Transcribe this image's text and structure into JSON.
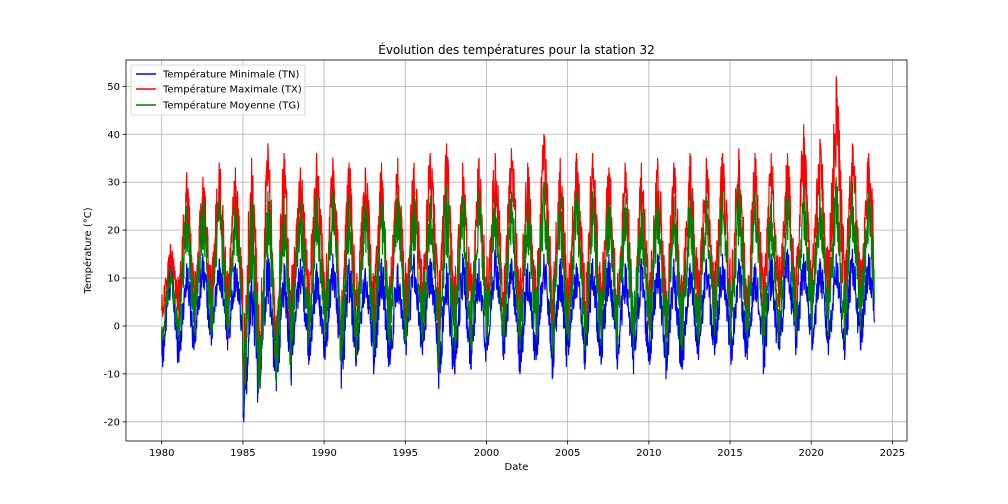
{
  "chart_data": {
    "type": "line",
    "title": "Évolution des températures pour la station 32",
    "xlabel": "Date",
    "ylabel": "Température (°C)",
    "x_range": [
      1977.8,
      2025.9
    ],
    "ylim": [
      -24,
      55.5
    ],
    "x_ticks": [
      1980,
      1985,
      1990,
      1995,
      2000,
      2005,
      2010,
      2015,
      2020,
      2025
    ],
    "y_ticks": [
      -20,
      -10,
      0,
      10,
      20,
      30,
      40,
      50
    ],
    "grid": true,
    "legend_position": "top-left",
    "series": [
      {
        "name": "Température Minimale (TN)",
        "color": "#0000ff",
        "annual_summer_peak": [
          14,
          13,
          15,
          14,
          13,
          12,
          15,
          13,
          14,
          13,
          15,
          14,
          12,
          14,
          13,
          15,
          14,
          13,
          15,
          14,
          16,
          14,
          13,
          15,
          14,
          13,
          14,
          15,
          13,
          14,
          15,
          14,
          13,
          14,
          15,
          14,
          13,
          15,
          16,
          15,
          14,
          15,
          16,
          15
        ],
        "annual_winter_trough": [
          -8.5,
          -7.5,
          -3.5,
          -4,
          -5,
          -20,
          -13,
          -13.5,
          -6,
          -8,
          -7,
          -13,
          -6,
          -10,
          -8,
          -6,
          -6,
          -13,
          -10,
          -9,
          -5,
          -7,
          -10,
          -7,
          -11,
          -6,
          -9,
          -8,
          -9,
          -10,
          -8,
          -11,
          -9,
          -7,
          -6,
          -8,
          -7,
          -10,
          -5,
          -6,
          -5,
          -6,
          -7,
          -5
        ]
      },
      {
        "name": "Température Maximale (TX)",
        "color": "#ff0000",
        "annual_summer_peak": [
          17,
          32,
          31,
          34,
          33,
          35,
          38,
          36,
          33,
          36,
          35,
          34,
          33,
          34,
          35,
          34,
          36,
          38,
          34,
          35,
          36,
          37,
          34,
          40,
          35,
          36,
          36,
          33,
          34,
          34,
          35,
          34,
          36,
          35,
          36,
          37,
          36,
          36,
          36,
          42,
          39,
          52,
          38,
          36
        ],
        "annual_winter_trough": [
          2,
          1,
          2,
          1,
          0,
          -15,
          -10,
          -10,
          2,
          1,
          0,
          -5,
          2,
          -2,
          0,
          1,
          2,
          -5,
          -1,
          0,
          2,
          1,
          -2,
          0,
          -3,
          1,
          -1,
          0,
          -1,
          -2,
          0,
          -3,
          -1,
          1,
          2,
          0,
          1,
          -2,
          3,
          2,
          3,
          2,
          1,
          3
        ]
      },
      {
        "name": "Température Moyenne (TG)",
        "color": "#008000",
        "annual_summer_peak": [
          12,
          25,
          26,
          27,
          26,
          27,
          28,
          27,
          26,
          27,
          28,
          27,
          26,
          27,
          28,
          27,
          27,
          29,
          27,
          28,
          27,
          28,
          27,
          30,
          27,
          28,
          28,
          26,
          27,
          27,
          28,
          27,
          28,
          27,
          28,
          29,
          28,
          28,
          28,
          30,
          29,
          31,
          30,
          28
        ],
        "annual_winter_trough": [
          -3,
          -3,
          -2,
          -2,
          -2,
          -18,
          -12,
          -12,
          -3,
          -4,
          -3,
          -8,
          -3,
          -6,
          -4,
          -3,
          -3,
          -9,
          -5,
          -5,
          -2,
          -3,
          -5,
          -3,
          -6,
          -3,
          -5,
          -4,
          -5,
          -6,
          -4,
          -6,
          -5,
          -3,
          -2,
          -4,
          -3,
          -5,
          -1,
          -2,
          -1,
          -2,
          -3,
          -1
        ]
      }
    ]
  }
}
